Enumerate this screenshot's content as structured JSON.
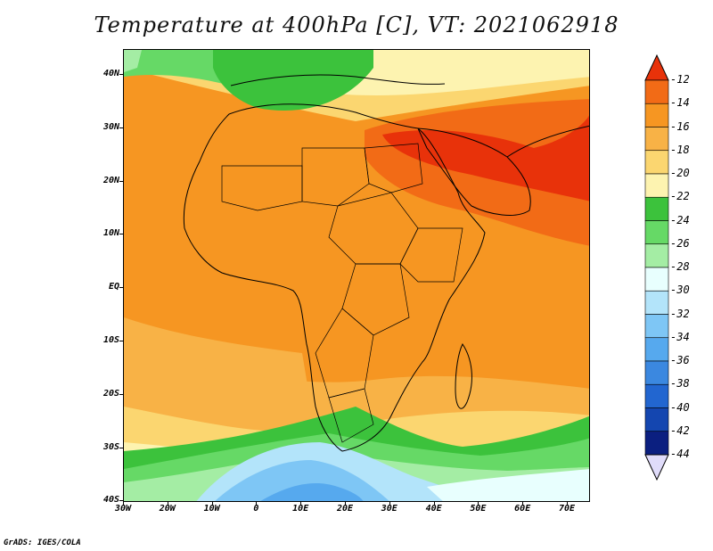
{
  "title": "Temperature at 400hPa [C], VT: 2021062918",
  "credit": "GrADS: IGES/COLA",
  "y_axis_labels": [
    "40N",
    "30N",
    "20N",
    "10N",
    "EQ",
    "10S",
    "20S",
    "30S",
    "40S"
  ],
  "x_axis_labels": [
    "30W",
    "20W",
    "10W",
    "0",
    "10E",
    "20E",
    "30E",
    "40E",
    "50E",
    "60E",
    "70E"
  ],
  "colorbar": {
    "labels": [
      "-12",
      "-14",
      "-16",
      "-18",
      "-20",
      "-22",
      "-24",
      "-26",
      "-28",
      "-30",
      "-32",
      "-34",
      "-36",
      "-38",
      "-40",
      "-42",
      "-44"
    ],
    "colors": [
      "#e8320a",
      "#f26b16",
      "#f69622",
      "#f8b246",
      "#fbd670",
      "#fdf3b0",
      "#3cc23c",
      "#66d966",
      "#a4eda4",
      "#e8fffe",
      "#b3e4fa",
      "#7ec6f5",
      "#56a9ee",
      "#3b88e0",
      "#2266d0",
      "#1446b0",
      "#0b1f80"
    ],
    "top_triangle_color": "#e8320a",
    "bottom_triangle_color": "#e0dcfa"
  }
}
